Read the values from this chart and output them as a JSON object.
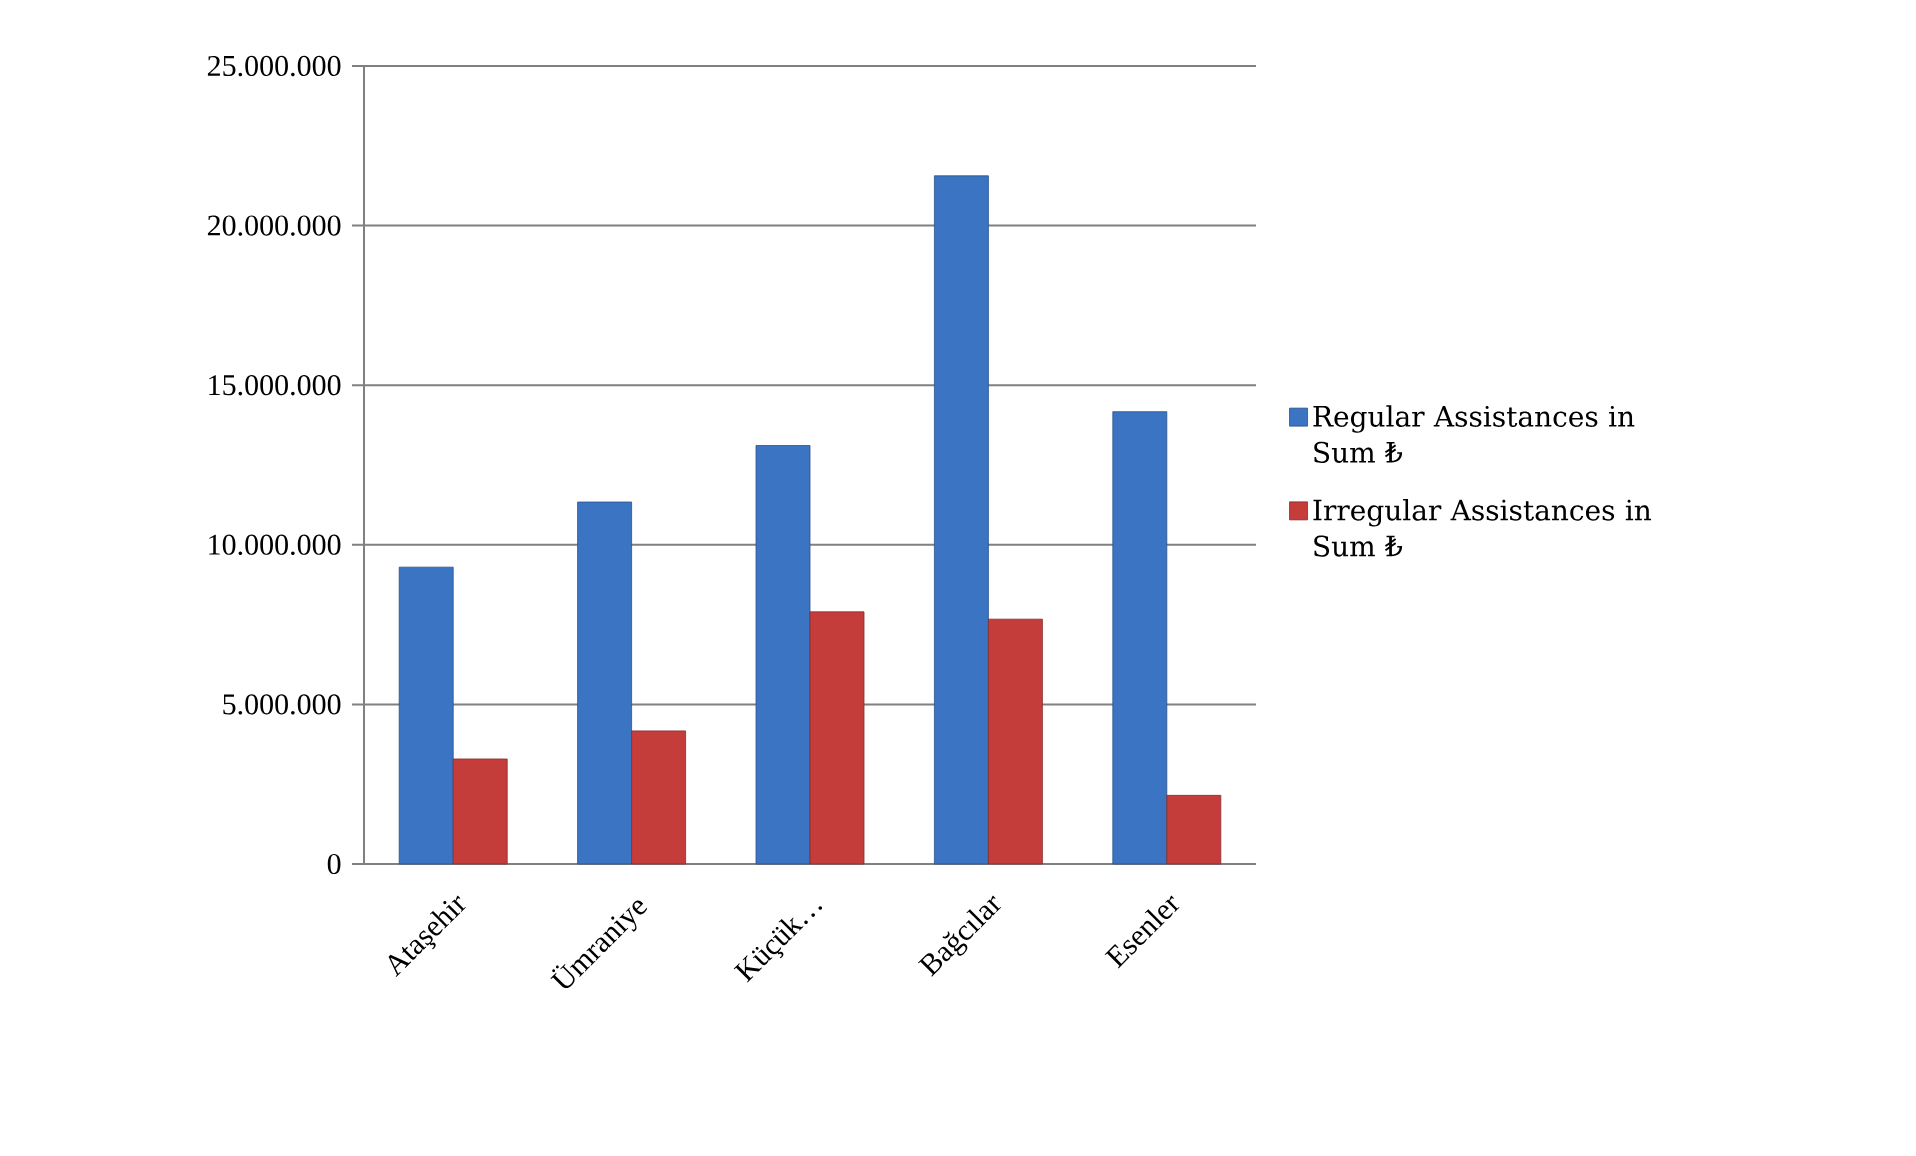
{
  "chart_data": {
    "type": "bar",
    "categories": [
      "Ataşehir",
      "Ümraniye",
      "Küçük…",
      "Bağcılar",
      "Esenler"
    ],
    "series": [
      {
        "name": "Regular Assistances in Sum ₺",
        "color": "#3a74c2",
        "values": [
          9300000,
          11340000,
          13110000,
          21560000,
          14170000
        ]
      },
      {
        "name": "Irregular Assistances in Sum ₺",
        "color": "#c43d3b",
        "values": [
          3290000,
          4170000,
          7900000,
          7670000,
          2150000
        ]
      }
    ],
    "ylim": [
      0,
      25000000
    ],
    "yticks": [
      0,
      {
        "value": 5000000,
        "label": "5.000.000"
      },
      {
        "value": 10000000,
        "label": "10.000.000"
      },
      {
        "value": 15000000,
        "label": "15.000.000"
      },
      {
        "value": 20000000,
        "label": "20.000.000"
      },
      {
        "value": 25000000,
        "label": "25.000.000"
      }
    ],
    "grid": "y",
    "legend": "right"
  }
}
